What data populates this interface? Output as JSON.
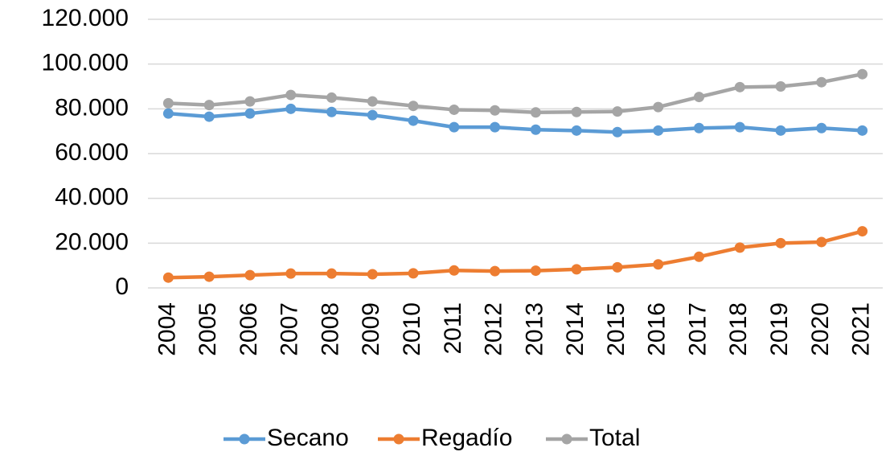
{
  "chart_data": {
    "type": "line",
    "categories": [
      "2004",
      "2005",
      "2006",
      "2007",
      "2008",
      "2009",
      "2010",
      "2011",
      "2012",
      "2013",
      "2014",
      "2015",
      "2016",
      "2017",
      "2018",
      "2019",
      "2020",
      "2021"
    ],
    "series": [
      {
        "name": "Secano",
        "color": "#5b9bd5",
        "values": [
          77900,
          76500,
          77900,
          80000,
          78600,
          77200,
          74700,
          71800,
          71800,
          70700,
          70300,
          69600,
          70300,
          71400,
          71800,
          70300,
          71400,
          70300
        ]
      },
      {
        "name": "Regadío",
        "color": "#ed7d31",
        "values": [
          4600,
          5000,
          5700,
          6400,
          6400,
          6100,
          6500,
          7800,
          7500,
          7700,
          8300,
          9200,
          10500,
          13900,
          18000,
          20000,
          20500,
          25300
        ]
      },
      {
        "name": "Total",
        "color": "#a5a5a5",
        "values": [
          82500,
          81700,
          83300,
          86200,
          85000,
          83300,
          81300,
          79600,
          79300,
          78400,
          78600,
          78800,
          80800,
          85300,
          89700,
          90000,
          91900,
          95500
        ]
      }
    ],
    "ylim": [
      0,
      120000
    ],
    "yticks": [
      0,
      {
        "value": 20000,
        "label": "20.000"
      },
      {
        "value": 40000,
        "label": "40.000"
      },
      {
        "value": 60000,
        "label": "60.000"
      },
      {
        "value": 80000,
        "label": "80.000"
      },
      {
        "value": 100000,
        "label": "100.000"
      },
      {
        "value": 120000,
        "label": "120.000"
      }
    ],
    "grid": true,
    "legend": "bottom"
  }
}
